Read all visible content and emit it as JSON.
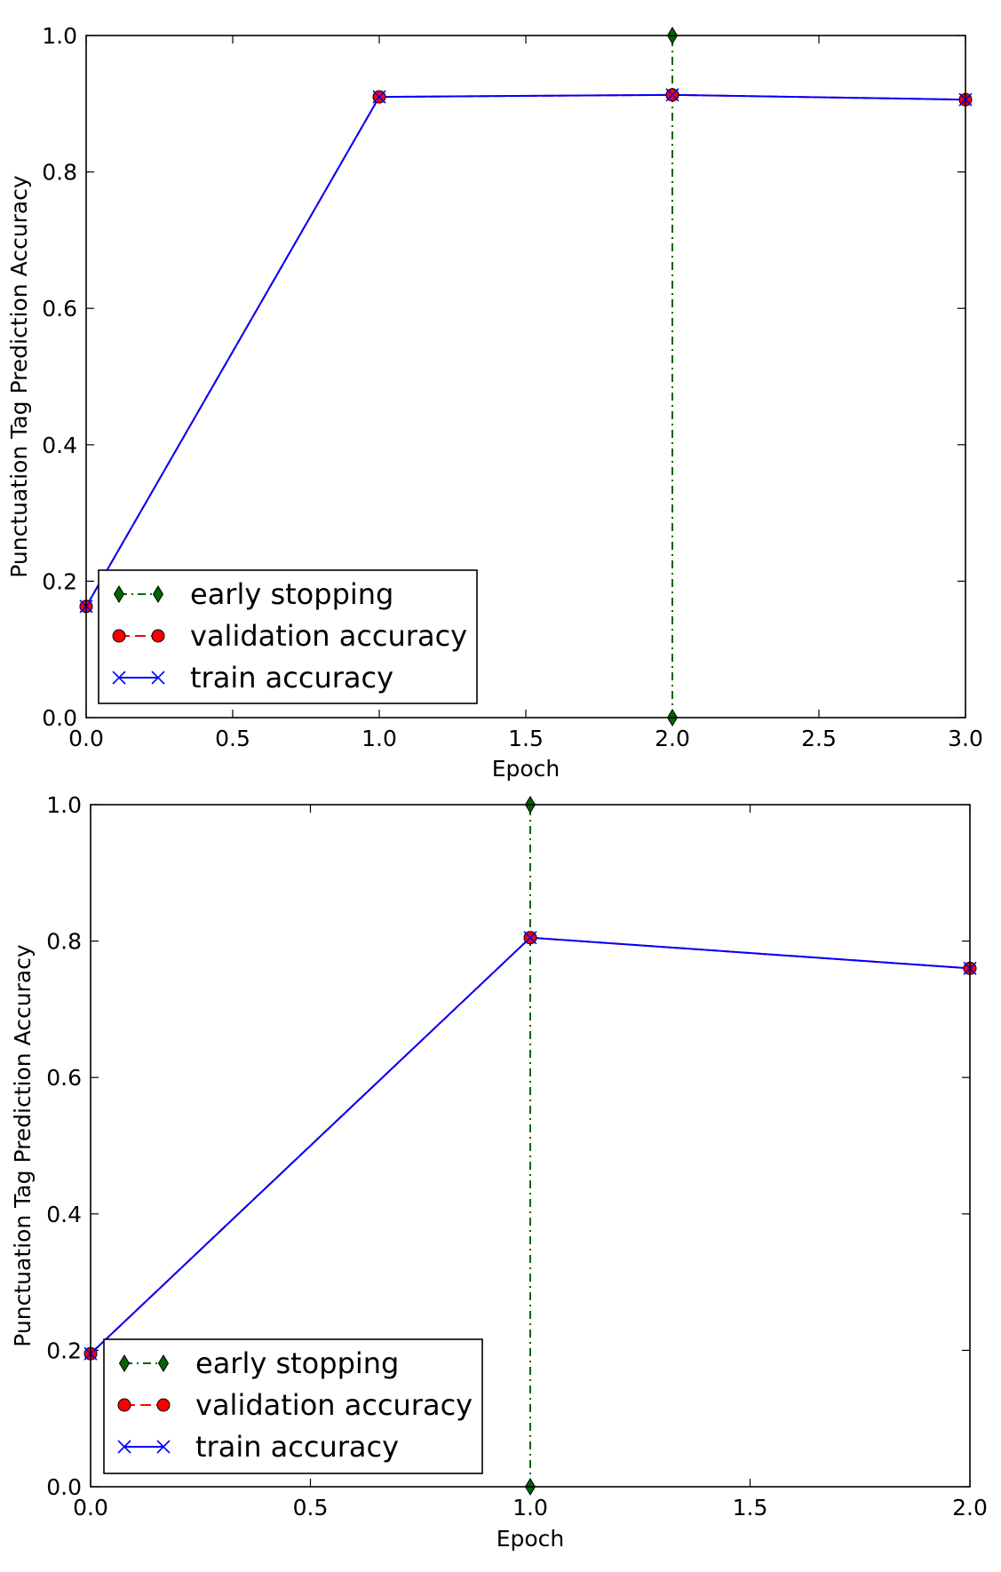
{
  "chart_data": [
    {
      "type": "line",
      "xlabel": "Epoch",
      "ylabel": "Punctuation Tag Prediction Accuracy",
      "xlim": [
        0,
        3
      ],
      "ylim": [
        0,
        1
      ],
      "xticks": [
        "0.0",
        "0.5",
        "1.0",
        "1.5",
        "2.0",
        "2.5",
        "3.0"
      ],
      "yticks": [
        "0.0",
        "0.2",
        "0.4",
        "0.6",
        "0.8",
        "1.0"
      ],
      "legend_position": "lower-left",
      "series": [
        {
          "name": "train accuracy",
          "color": "#0000ff",
          "linestyle": "solid",
          "marker": "x",
          "x": [
            0,
            1,
            2,
            3
          ],
          "y": [
            0.163,
            0.91,
            0.913,
            0.906
          ]
        },
        {
          "name": "validation accuracy",
          "color": "#ff0000",
          "linestyle": "dashed",
          "marker": "circle",
          "x": [
            0,
            1,
            2,
            3
          ],
          "y": [
            0.163,
            0.91,
            0.913,
            0.906
          ]
        },
        {
          "name": "early stopping",
          "color": "#006400",
          "linestyle": "dashdot",
          "marker": "diamond",
          "x": [
            2,
            2
          ],
          "y": [
            0,
            1
          ]
        }
      ]
    },
    {
      "type": "line",
      "xlabel": "Epoch",
      "ylabel": "Punctuation Tag Prediction Accuracy",
      "xlim": [
        0,
        2
      ],
      "ylim": [
        0,
        1
      ],
      "xticks": [
        "0.0",
        "0.5",
        "1.0",
        "1.5",
        "2.0"
      ],
      "yticks": [
        "0.0",
        "0.2",
        "0.4",
        "0.6",
        "0.8",
        "1.0"
      ],
      "legend_position": "lower-left",
      "series": [
        {
          "name": "train accuracy",
          "color": "#0000ff",
          "linestyle": "solid",
          "marker": "x",
          "x": [
            0,
            1,
            2
          ],
          "y": [
            0.195,
            0.805,
            0.76
          ]
        },
        {
          "name": "validation accuracy",
          "color": "#ff0000",
          "linestyle": "dashed",
          "marker": "circle",
          "x": [
            0,
            1,
            2
          ],
          "y": [
            0.195,
            0.805,
            0.76
          ]
        },
        {
          "name": "early stopping",
          "color": "#006400",
          "linestyle": "dashdot",
          "marker": "diamond",
          "x": [
            1,
            1
          ],
          "y": [
            0,
            1
          ]
        }
      ]
    }
  ]
}
